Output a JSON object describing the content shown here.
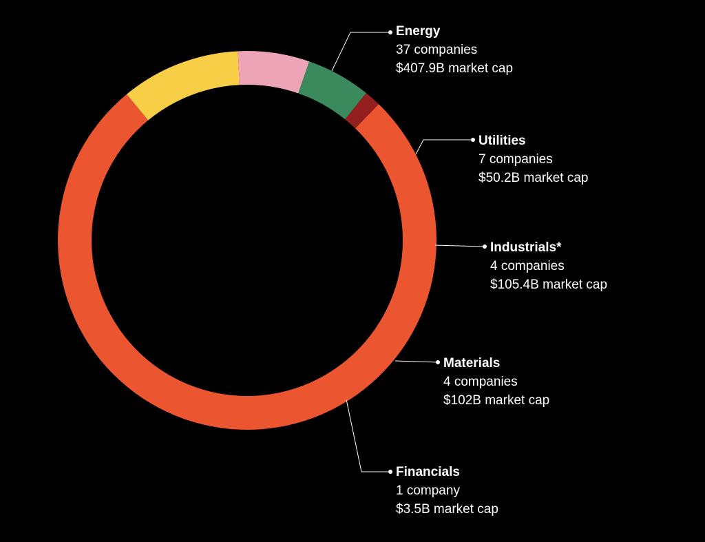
{
  "chart_data": {
    "type": "pie",
    "variant": "donut",
    "title": "",
    "segments": [
      {
        "name": "Energy",
        "companies_label": "37 companies",
        "companies": 37,
        "market_cap_label": "$407.9B market cap",
        "share": 0.768,
        "color": "#EB5530"
      },
      {
        "name": "Utilities",
        "companies_label": "7 companies",
        "companies": 7,
        "market_cap_label": "$50.2B market cap",
        "share": 0.102,
        "color": "#F7CE46"
      },
      {
        "name": "Industrials*",
        "companies_label": "4 companies",
        "companies": 4,
        "market_cap_label": "$105.4B market cap",
        "share": 0.061,
        "color": "#EDA4B7"
      },
      {
        "name": "Materials",
        "companies_label": "4 companies",
        "companies": 4,
        "market_cap_label": "$102B market cap",
        "share": 0.055,
        "color": "#3A8A5E"
      },
      {
        "name": "Financials",
        "companies_label": "1 company",
        "companies": 1,
        "market_cap_label": "$3.5B market cap",
        "share": 0.014,
        "color": "#951E1E"
      }
    ],
    "start_angle_deg": 44,
    "direction": "clockwise",
    "background": "#000000",
    "leader_color": "#ffffff"
  }
}
